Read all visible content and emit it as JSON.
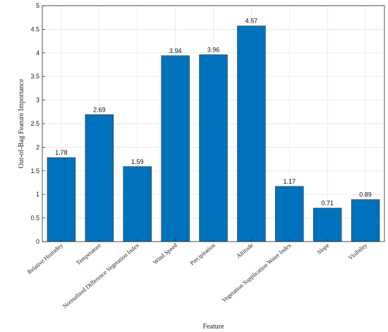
{
  "chart_data": {
    "type": "bar",
    "title": "",
    "xlabel": "Feature",
    "ylabel": "Out-of-Bag Feature Importance",
    "categories": [
      "Relative Humidity",
      "Temperature",
      "Normalized Difference Vegetation Index",
      "Wind Speed",
      "Precipitation",
      "Altitude",
      "Vegetation Supplication Water Index",
      "Slope",
      "Visibility"
    ],
    "values": [
      1.78,
      2.69,
      1.59,
      3.94,
      3.96,
      4.57,
      1.17,
      0.71,
      0.89
    ],
    "value_labels": [
      "1.78",
      "2.69",
      "1.59",
      "3.94",
      "3.96",
      "4.57",
      "1.17",
      "0.71",
      "0.89"
    ],
    "ylim": [
      0,
      5
    ],
    "yticks": [
      0,
      0.5,
      1,
      1.5,
      2,
      2.5,
      3,
      3.5,
      4,
      4.5,
      5
    ],
    "ytick_labels": [
      "0",
      "0.5",
      "1",
      "1.5",
      "2",
      "2.5",
      "3",
      "3.5",
      "4",
      "4.5",
      "5"
    ],
    "grid": true,
    "bar_color": "#0072BD"
  }
}
